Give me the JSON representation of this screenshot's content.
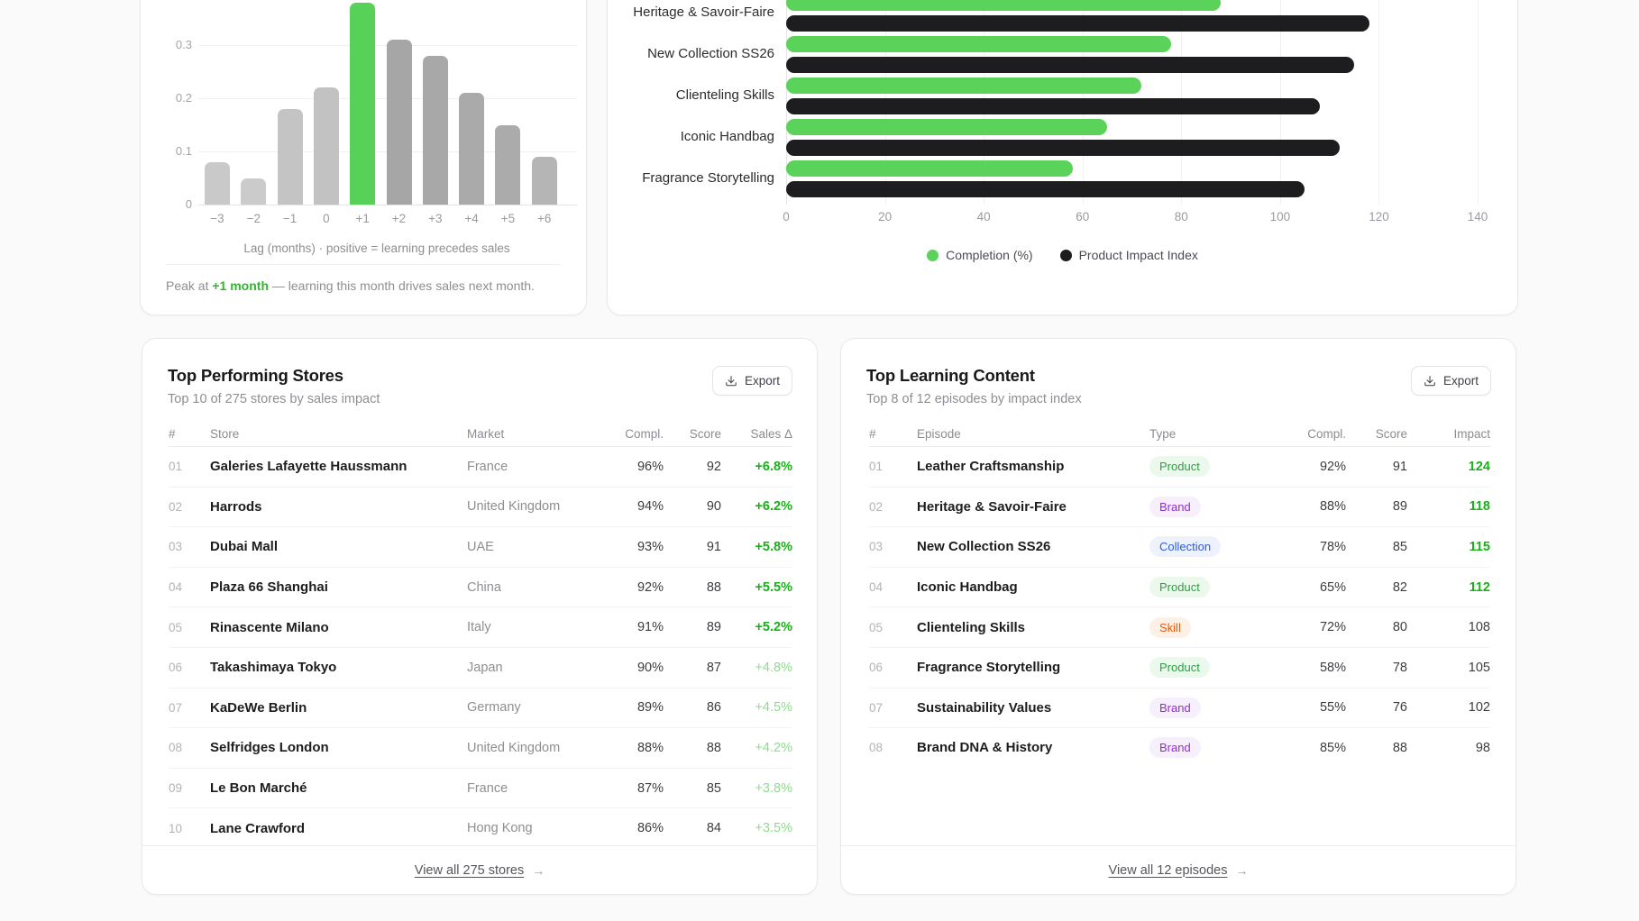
{
  "lag_card": {
    "yticks": [
      0,
      0.1,
      0.2,
      0.3
    ],
    "chart_data": {
      "type": "bar",
      "categories": [
        "−3",
        "−2",
        "−1",
        "0",
        "+1",
        "+2",
        "+3",
        "+4",
        "+5",
        "+6"
      ],
      "values": [
        0.08,
        0.05,
        0.18,
        0.22,
        0.38,
        0.31,
        0.28,
        0.21,
        0.15,
        0.09
      ],
      "bar_colors": [
        "#c9c9c9",
        "#cbcbcb",
        "#c4c4c4",
        "#c2c2c2",
        "#57d157",
        "#a6a6a6",
        "#a8a8a8",
        "#aaaaaa",
        "#ababab",
        "#b5b5b5"
      ],
      "highlight_index": 4,
      "xlabel": "Lag (months) · positive = learning precedes sales",
      "ylim": [
        0,
        0.4
      ],
      "grid": "on"
    },
    "caption_prefix": "Peak at ",
    "caption_highlight": "+1 month",
    "caption_suffix": " — learning this month drives sales next month.",
    "highlight_color": "#2eb82e"
  },
  "impact_card": {
    "chart_data": {
      "type": "bar",
      "orientation": "horizontal",
      "categories": [
        "Heritage & Savoir-Faire",
        "New Collection SS26",
        "Clienteling Skills",
        "Iconic Handbag",
        "Fragrance Storytelling"
      ],
      "series": [
        {
          "name": "Completion (%)",
          "color": "#5bd35b",
          "values": [
            88,
            78,
            72,
            65,
            58
          ]
        },
        {
          "name": "Product Impact Index",
          "color": "#1d1d20",
          "values": [
            118,
            115,
            108,
            112,
            105
          ]
        }
      ],
      "xticks": [
        0,
        20,
        40,
        60,
        80,
        100,
        120,
        140
      ],
      "xlim": [
        0,
        140
      ],
      "grid": "on",
      "legend_position": "bottom"
    },
    "legend": [
      {
        "label": "Completion (%)",
        "color": "#5bd35b"
      },
      {
        "label": "Product Impact Index",
        "color": "#1d1d20"
      }
    ]
  },
  "stores_card": {
    "title": "Top Performing Stores",
    "subtitle": "Top 10 of 275 stores by sales impact",
    "export_label": "Export",
    "export_icon": "download-icon",
    "columns": [
      "#",
      "Store",
      "Market",
      "Compl.",
      "Score",
      "Sales Δ"
    ],
    "rows": [
      {
        "rank": "01",
        "store": "Galeries Lafayette Haussmann",
        "market": "France",
        "compl": "96%",
        "score": "92",
        "delta": "+6.8%",
        "strong": true
      },
      {
        "rank": "02",
        "store": "Harrods",
        "market": "United Kingdom",
        "compl": "94%",
        "score": "90",
        "delta": "+6.2%",
        "strong": true
      },
      {
        "rank": "03",
        "store": "Dubai Mall",
        "market": "UAE",
        "compl": "93%",
        "score": "91",
        "delta": "+5.8%",
        "strong": true
      },
      {
        "rank": "04",
        "store": "Plaza 66 Shanghai",
        "market": "China",
        "compl": "92%",
        "score": "88",
        "delta": "+5.5%",
        "strong": true
      },
      {
        "rank": "05",
        "store": "Rinascente Milano",
        "market": "Italy",
        "compl": "91%",
        "score": "89",
        "delta": "+5.2%",
        "strong": true
      },
      {
        "rank": "06",
        "store": "Takashimaya Tokyo",
        "market": "Japan",
        "compl": "90%",
        "score": "87",
        "delta": "+4.8%",
        "strong": false
      },
      {
        "rank": "07",
        "store": "KaDeWe Berlin",
        "market": "Germany",
        "compl": "89%",
        "score": "86",
        "delta": "+4.5%",
        "strong": false
      },
      {
        "rank": "08",
        "store": "Selfridges London",
        "market": "United Kingdom",
        "compl": "88%",
        "score": "88",
        "delta": "+4.2%",
        "strong": false
      },
      {
        "rank": "09",
        "store": "Le Bon Marché",
        "market": "France",
        "compl": "87%",
        "score": "85",
        "delta": "+3.8%",
        "strong": false
      },
      {
        "rank": "10",
        "store": "Lane Crawford",
        "market": "Hong Kong",
        "compl": "86%",
        "score": "84",
        "delta": "+3.5%",
        "strong": false
      }
    ],
    "delta_strong_color": "#16b216",
    "delta_soft_color": "#8edc8e",
    "footer_link": "View all 275 stores",
    "footer_arrow": "→"
  },
  "content_card": {
    "title": "Top Learning Content",
    "subtitle": "Top 8 of 12 episodes by impact index",
    "export_label": "Export",
    "export_icon": "download-icon",
    "columns": [
      "#",
      "Episode",
      "Type",
      "Compl.",
      "Score",
      "Impact"
    ],
    "rows": [
      {
        "rank": "01",
        "episode": "Leather Craftsmanship",
        "type": "Product",
        "compl": "92%",
        "score": "91",
        "impact": "124",
        "impact_green": true
      },
      {
        "rank": "02",
        "episode": "Heritage & Savoir-Faire",
        "type": "Brand",
        "compl": "88%",
        "score": "89",
        "impact": "118",
        "impact_green": true
      },
      {
        "rank": "03",
        "episode": "New Collection SS26",
        "type": "Collection",
        "compl": "78%",
        "score": "85",
        "impact": "115",
        "impact_green": true
      },
      {
        "rank": "04",
        "episode": "Iconic Handbag",
        "type": "Product",
        "compl": "65%",
        "score": "82",
        "impact": "112",
        "impact_green": true
      },
      {
        "rank": "05",
        "episode": "Clienteling Skills",
        "type": "Skill",
        "compl": "72%",
        "score": "80",
        "impact": "108",
        "impact_green": false
      },
      {
        "rank": "06",
        "episode": "Fragrance Storytelling",
        "type": "Product",
        "compl": "58%",
        "score": "78",
        "impact": "105",
        "impact_green": false
      },
      {
        "rank": "07",
        "episode": "Sustainability Values",
        "type": "Brand",
        "compl": "55%",
        "score": "76",
        "impact": "102",
        "impact_green": false
      },
      {
        "rank": "08",
        "episode": "Brand DNA & History",
        "type": "Brand",
        "compl": "85%",
        "score": "88",
        "impact": "98",
        "impact_green": false
      }
    ],
    "badge_styles": {
      "Product": {
        "fg": "#2f9e44",
        "bg": "#eaf9ec"
      },
      "Brand": {
        "fg": "#8f2fd0",
        "bg": "#f7effc"
      },
      "Collection": {
        "fg": "#2b5cd9",
        "bg": "#edf2fd"
      },
      "Skill": {
        "fg": "#e8590c",
        "bg": "#fdf0e5"
      }
    },
    "impact_green_color": "#16b216",
    "footer_link": "View all 12 episodes",
    "footer_arrow": "→"
  }
}
